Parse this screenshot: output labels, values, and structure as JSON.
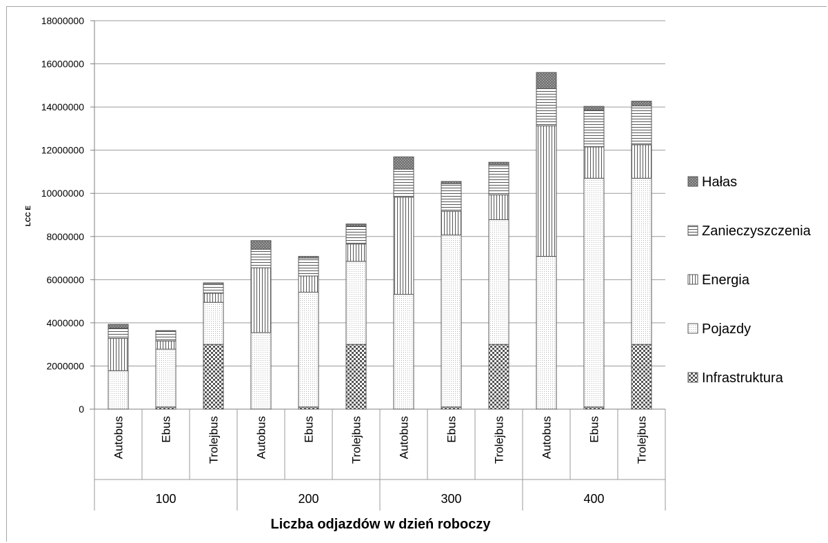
{
  "chart_data": {
    "type": "bar",
    "stacked": true,
    "title": "",
    "xlabel": "Liczba odjazdów w dzień roboczy",
    "ylabel": "LCC E",
    "ylim": [
      0,
      18000000
    ],
    "yticks": [
      0,
      2000000,
      4000000,
      6000000,
      8000000,
      10000000,
      12000000,
      14000000,
      16000000,
      18000000
    ],
    "ytick_labels": [
      "0",
      "2000000",
      "4000000",
      "6000000",
      "8000000",
      "10000000",
      "12000000",
      "14000000",
      "16000000",
      "18000000"
    ],
    "grid": true,
    "legend_position": "right",
    "groups": [
      "100",
      "200",
      "300",
      "400"
    ],
    "categories": [
      "Autobus",
      "Ebus",
      "Trolejbus",
      "Autobus",
      "Ebus",
      "Trolejbus",
      "Autobus",
      "Ebus",
      "Trolejbus",
      "Autobus",
      "Ebus",
      "Trolejbus"
    ],
    "series": [
      {
        "name": "Infrastruktura",
        "pattern": "checker",
        "values": [
          0,
          100000,
          3000000,
          0,
          100000,
          3000000,
          0,
          100000,
          3000000,
          0,
          100000,
          3000000
        ]
      },
      {
        "name": "Pojazdy",
        "pattern": "dots",
        "values": [
          1780000,
          2680000,
          1950000,
          3550000,
          5320000,
          3850000,
          5320000,
          7970000,
          5780000,
          7080000,
          10600000,
          7700000
        ]
      },
      {
        "name": "Energia",
        "pattern": "vlines",
        "values": [
          1500000,
          380000,
          420000,
          3000000,
          750000,
          800000,
          4500000,
          1100000,
          1150000,
          6050000,
          1450000,
          1550000
        ]
      },
      {
        "name": "Zanieczyszczenia",
        "pattern": "hlines",
        "values": [
          480000,
          440000,
          450000,
          860000,
          830000,
          830000,
          1300000,
          1280000,
          1400000,
          1720000,
          1700000,
          1800000
        ]
      },
      {
        "name": "Hałas",
        "pattern": "dark",
        "values": [
          170000,
          40000,
          30000,
          400000,
          80000,
          100000,
          570000,
          100000,
          110000,
          750000,
          180000,
          220000
        ]
      }
    ]
  }
}
